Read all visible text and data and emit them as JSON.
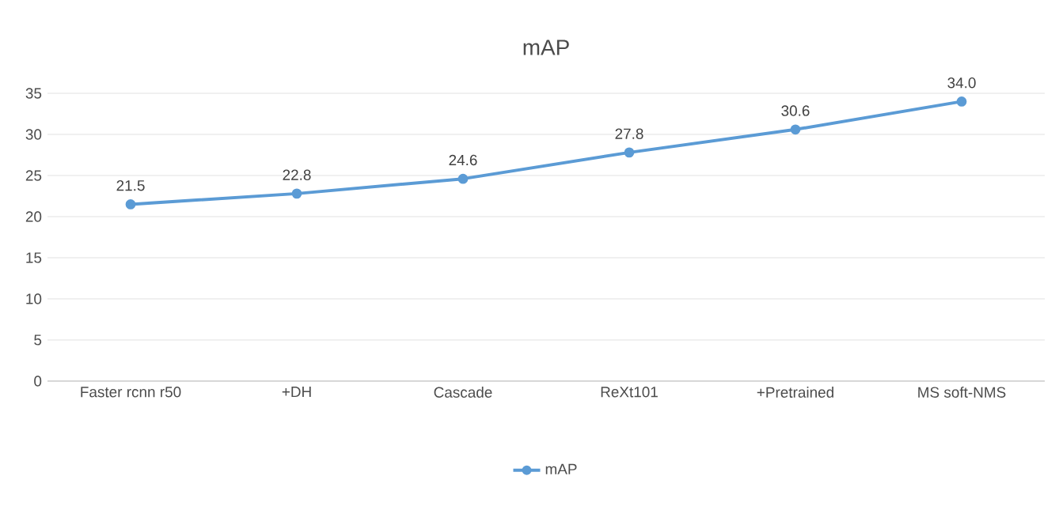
{
  "chart_data": {
    "type": "line",
    "title": "mAP",
    "categories": [
      "Faster rcnn r50",
      "+DH",
      "Cascade",
      "ReXt101",
      "+Pretrained",
      "MS soft-NMS"
    ],
    "series": [
      {
        "name": "mAP",
        "color": "#5b9bd5",
        "values": [
          21.5,
          22.8,
          24.6,
          27.8,
          30.6,
          34.0
        ],
        "value_labels": [
          "21.5",
          "22.8",
          "24.6",
          "27.8",
          "30.6",
          "34.0"
        ]
      }
    ],
    "ylim": [
      0,
      35
    ],
    "yticks": [
      0,
      5,
      10,
      15,
      20,
      25,
      30,
      35
    ],
    "grid": "y",
    "legend": "bottom",
    "marker": "circle",
    "line_style": "solid"
  }
}
